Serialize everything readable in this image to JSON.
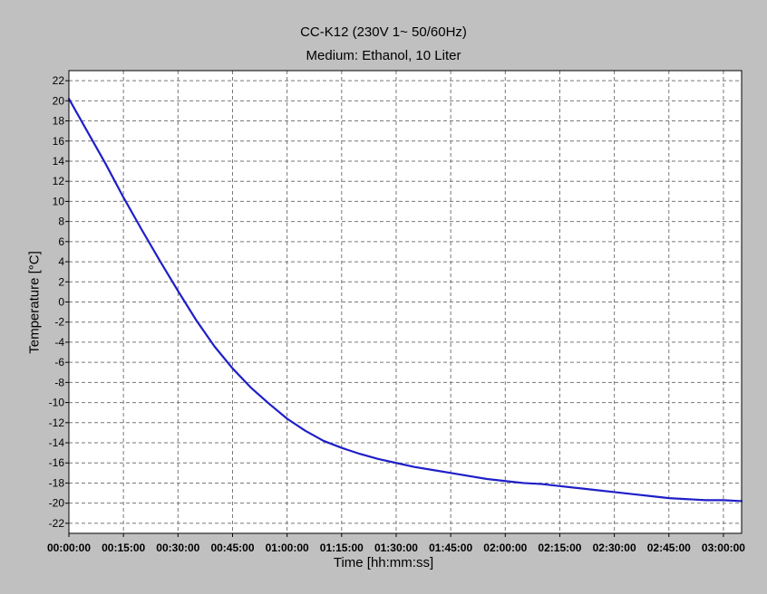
{
  "chart_data": {
    "type": "line",
    "title": "CC-K12 (230V 1~ 50/60Hz)",
    "subtitle": "Medium: Ethanol, 10 Liter",
    "xlabel": "Time [hh:mm:ss]",
    "ylabel": "Temperature [°C]",
    "x_unit": "minutes",
    "xlim": [
      0,
      185
    ],
    "ylim": [
      -23,
      23
    ],
    "x_ticks": [
      0,
      15,
      30,
      45,
      60,
      75,
      90,
      105,
      120,
      135,
      150,
      165,
      180
    ],
    "x_tick_labels": [
      "00:00:00",
      "00:15:00",
      "00:30:00",
      "00:45:00",
      "01:00:00",
      "01:15:00",
      "01:30:00",
      "01:45:00",
      "02:00:00",
      "02:15:00",
      "02:30:00",
      "02:45:00",
      "03:00:00"
    ],
    "y_ticks": [
      22,
      20,
      18,
      16,
      14,
      12,
      10,
      8,
      6,
      4,
      2,
      0,
      -2,
      -4,
      -6,
      -8,
      -10,
      -12,
      -14,
      -16,
      -18,
      -20,
      -22
    ],
    "y_tick_labels": [
      "22",
      "20",
      "18",
      "16",
      "14",
      "12",
      "10",
      "8",
      "6",
      "4",
      "2",
      "0",
      "-2",
      "-4",
      "-6",
      "-8",
      "-10",
      "-12",
      "-14",
      "-16",
      "-18",
      "-20",
      "-22"
    ],
    "grid": true,
    "colors": {
      "line": "#1f1fc8",
      "plot_background": "#ffffff",
      "frame_background": "#c0c0c0",
      "grid": "#777777"
    },
    "series": [
      {
        "x": [
          0,
          5,
          10,
          15,
          20,
          25,
          30,
          35,
          40,
          45,
          50,
          55,
          60,
          65,
          70,
          75,
          80,
          85,
          90,
          95,
          100,
          105,
          110,
          115,
          120,
          125,
          130,
          135,
          140,
          145,
          150,
          155,
          160,
          165,
          170,
          175,
          180,
          185
        ],
        "y": [
          20.2,
          17.0,
          13.8,
          10.4,
          7.2,
          4.1,
          1.1,
          -1.8,
          -4.4,
          -6.6,
          -8.5,
          -10.1,
          -11.6,
          -12.8,
          -13.8,
          -14.5,
          -15.1,
          -15.6,
          -16.0,
          -16.4,
          -16.7,
          -17.0,
          -17.3,
          -17.6,
          -17.8,
          -18.0,
          -18.1,
          -18.3,
          -18.5,
          -18.7,
          -18.9,
          -19.1,
          -19.3,
          -19.5,
          -19.6,
          -19.7,
          -19.7,
          -19.8
        ]
      }
    ]
  }
}
